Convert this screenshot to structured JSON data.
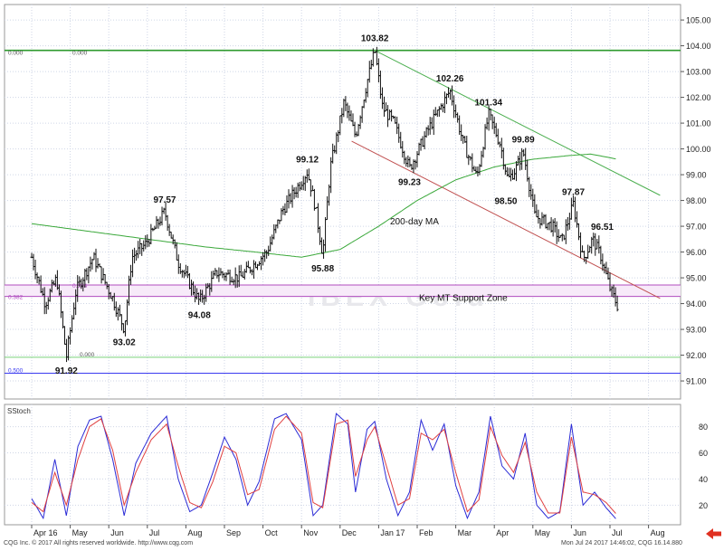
{
  "chart_data": [
    {
      "type": "ohlc",
      "instrument": "",
      "ylim": [
        90.3,
        105.6
      ],
      "y_ticks": [
        "105.00",
        "104.00",
        "103.00",
        "102.00",
        "101.00",
        "100.00",
        "99.00",
        "98.00",
        "97.00",
        "96.00",
        "95.00",
        "94.00",
        "93.00",
        "92.00",
        "91.00"
      ],
      "x_ticks": [
        "Apr 16",
        "May",
        "Jun",
        "Jul",
        "Aug",
        "Sep",
        "Oct",
        "Nov",
        "Dec",
        "Jan 17",
        "Feb",
        "Mar",
        "Apr",
        "May",
        "Jun",
        "Jul",
        "Aug"
      ],
      "price_anchors": [
        {
          "m": 0.0,
          "v": 95.8
        },
        {
          "m": 0.35,
          "v": 94.0
        },
        {
          "m": 0.65,
          "v": 95.0
        },
        {
          "m": 0.9,
          "v": 91.92
        },
        {
          "m": 1.15,
          "v": 94.5
        },
        {
          "m": 1.6,
          "v": 95.8
        },
        {
          "m": 2.1,
          "v": 94.2
        },
        {
          "m": 2.4,
          "v": 93.02
        },
        {
          "m": 2.6,
          "v": 95.8
        },
        {
          "m": 2.95,
          "v": 96.3
        },
        {
          "m": 3.45,
          "v": 97.57
        },
        {
          "m": 3.8,
          "v": 95.6
        },
        {
          "m": 4.35,
          "v": 94.08
        },
        {
          "m": 4.8,
          "v": 95.2
        },
        {
          "m": 5.4,
          "v": 95.0
        },
        {
          "m": 6.1,
          "v": 96.0
        },
        {
          "m": 6.5,
          "v": 97.6
        },
        {
          "m": 7.15,
          "v": 99.12
        },
        {
          "m": 7.35,
          "v": 97.8
        },
        {
          "m": 7.55,
          "v": 95.88
        },
        {
          "m": 7.75,
          "v": 99.3
        },
        {
          "m": 8.1,
          "v": 101.8
        },
        {
          "m": 8.4,
          "v": 100.5
        },
        {
          "m": 8.7,
          "v": 102.6
        },
        {
          "m": 8.9,
          "v": 103.82
        },
        {
          "m": 9.1,
          "v": 101.6
        },
        {
          "m": 9.4,
          "v": 101.0
        },
        {
          "m": 9.8,
          "v": 99.23
        },
        {
          "m": 10.3,
          "v": 100.8
        },
        {
          "m": 10.85,
          "v": 102.26
        },
        {
          "m": 11.2,
          "v": 100.2
        },
        {
          "m": 11.55,
          "v": 98.9
        },
        {
          "m": 11.85,
          "v": 101.34
        },
        {
          "m": 12.15,
          "v": 100.2
        },
        {
          "m": 12.35,
          "v": 98.8
        },
        {
          "m": 12.55,
          "v": 99.2
        },
        {
          "m": 12.75,
          "v": 99.89
        },
        {
          "m": 13.05,
          "v": 97.4
        },
        {
          "m": 13.5,
          "v": 97.0
        },
        {
          "m": 13.75,
          "v": 96.4
        },
        {
          "m": 14.05,
          "v": 97.87
        },
        {
          "m": 14.3,
          "v": 95.7
        },
        {
          "m": 14.55,
          "v": 96.51
        },
        {
          "m": 14.75,
          "v": 95.9
        },
        {
          "m": 15.0,
          "v": 94.6
        },
        {
          "m": 15.2,
          "v": 93.9
        }
      ],
      "ma_anchors": [
        {
          "m": 0.0,
          "v": 97.1
        },
        {
          "m": 1.5,
          "v": 96.8
        },
        {
          "m": 3.0,
          "v": 96.5
        },
        {
          "m": 4.5,
          "v": 96.2
        },
        {
          "m": 5.8,
          "v": 96.0
        },
        {
          "m": 7.0,
          "v": 95.8
        },
        {
          "m": 8.0,
          "v": 96.1
        },
        {
          "m": 9.0,
          "v": 97.0
        },
        {
          "m": 10.0,
          "v": 98.0
        },
        {
          "m": 11.0,
          "v": 98.8
        },
        {
          "m": 12.0,
          "v": 99.3
        },
        {
          "m": 13.0,
          "v": 99.6
        },
        {
          "m": 14.0,
          "v": 99.75
        },
        {
          "m": 14.5,
          "v": 99.8
        },
        {
          "m": 15.2,
          "v": 99.6
        }
      ],
      "ma_label": "200-day MA",
      "downtrend_channel": {
        "upper": {
          "from": {
            "m": 8.9,
            "v": 103.82
          },
          "to": {
            "m": 16.3,
            "v": 98.2
          }
        },
        "lower": {
          "from": {
            "m": 8.3,
            "v": 100.3
          },
          "to": {
            "m": 16.3,
            "v": 94.2
          }
        }
      },
      "fib_lines": [
        {
          "label": "0.000",
          "value": 103.82,
          "color": "#2e9a2e"
        },
        {
          "label": "0.382",
          "value": 94.28,
          "color": "#b04cbf"
        },
        {
          "label": "0.500",
          "value": 91.3,
          "color": "#3a3af0"
        }
      ],
      "extra_fib_labels": [
        {
          "label": "0.000",
          "value": 103.82
        },
        {
          "label": "0.324",
          "value": 94.72
        },
        {
          "label": "0.000",
          "value": 91.92
        }
      ],
      "support_zone": {
        "label": "Key MT Support Zone",
        "top": 94.72,
        "bottom": 94.28
      },
      "green_support": 91.92,
      "annotations": [
        {
          "text": "103.82",
          "m": 8.9,
          "v": 103.82,
          "pos": "above"
        },
        {
          "text": "102.26",
          "m": 10.85,
          "v": 102.26,
          "pos": "above"
        },
        {
          "text": "101.34",
          "m": 11.85,
          "v": 101.34,
          "pos": "above"
        },
        {
          "text": "99.89",
          "m": 12.75,
          "v": 99.89,
          "pos": "above"
        },
        {
          "text": "99.12",
          "m": 7.15,
          "v": 99.12,
          "pos": "above"
        },
        {
          "text": "99.23",
          "m": 9.8,
          "v": 99.23,
          "pos": "below"
        },
        {
          "text": "98.50",
          "m": 12.3,
          "v": 98.5,
          "pos": "below"
        },
        {
          "text": "97.87",
          "m": 14.05,
          "v": 97.87,
          "pos": "above"
        },
        {
          "text": "97.57",
          "m": 3.45,
          "v": 97.57,
          "pos": "above"
        },
        {
          "text": "96.51",
          "m": 14.8,
          "v": 96.51,
          "pos": "above"
        },
        {
          "text": "95.88",
          "m": 7.55,
          "v": 95.88,
          "pos": "below"
        },
        {
          "text": "94.08",
          "m": 4.35,
          "v": 94.08,
          "pos": "below"
        },
        {
          "text": "93.02",
          "m": 2.4,
          "v": 93.02,
          "pos": "below"
        },
        {
          "text": "91.92",
          "m": 0.9,
          "v": 91.92,
          "pos": "below"
        }
      ]
    },
    {
      "type": "line",
      "title": "SStoch",
      "ylim": [
        5,
        97
      ],
      "y_ticks": [
        "80",
        "60",
        "40",
        "20"
      ],
      "series": [
        {
          "color": "#2b2bd6",
          "anchors": [
            {
              "m": 0.0,
              "v": 25
            },
            {
              "m": 0.3,
              "v": 10
            },
            {
              "m": 0.6,
              "v": 55
            },
            {
              "m": 0.9,
              "v": 12
            },
            {
              "m": 1.2,
              "v": 65
            },
            {
              "m": 1.5,
              "v": 85
            },
            {
              "m": 1.8,
              "v": 88
            },
            {
              "m": 2.1,
              "v": 55
            },
            {
              "m": 2.4,
              "v": 12
            },
            {
              "m": 2.7,
              "v": 52
            },
            {
              "m": 3.1,
              "v": 75
            },
            {
              "m": 3.5,
              "v": 88
            },
            {
              "m": 3.8,
              "v": 40
            },
            {
              "m": 4.1,
              "v": 15
            },
            {
              "m": 4.4,
              "v": 20
            },
            {
              "m": 4.7,
              "v": 45
            },
            {
              "m": 5.0,
              "v": 72
            },
            {
              "m": 5.3,
              "v": 55
            },
            {
              "m": 5.6,
              "v": 20
            },
            {
              "m": 5.9,
              "v": 38
            },
            {
              "m": 6.3,
              "v": 86
            },
            {
              "m": 6.6,
              "v": 90
            },
            {
              "m": 7.0,
              "v": 70
            },
            {
              "m": 7.3,
              "v": 12
            },
            {
              "m": 7.55,
              "v": 20
            },
            {
              "m": 7.9,
              "v": 90
            },
            {
              "m": 8.2,
              "v": 82
            },
            {
              "m": 8.4,
              "v": 30
            },
            {
              "m": 8.7,
              "v": 78
            },
            {
              "m": 8.9,
              "v": 84
            },
            {
              "m": 9.2,
              "v": 40
            },
            {
              "m": 9.5,
              "v": 12
            },
            {
              "m": 9.8,
              "v": 30
            },
            {
              "m": 10.1,
              "v": 85
            },
            {
              "m": 10.4,
              "v": 62
            },
            {
              "m": 10.7,
              "v": 82
            },
            {
              "m": 11.0,
              "v": 35
            },
            {
              "m": 11.3,
              "v": 10
            },
            {
              "m": 11.6,
              "v": 30
            },
            {
              "m": 11.9,
              "v": 88
            },
            {
              "m": 12.2,
              "v": 50
            },
            {
              "m": 12.5,
              "v": 40
            },
            {
              "m": 12.8,
              "v": 75
            },
            {
              "m": 13.1,
              "v": 20
            },
            {
              "m": 13.4,
              "v": 10
            },
            {
              "m": 13.7,
              "v": 15
            },
            {
              "m": 14.0,
              "v": 82
            },
            {
              "m": 14.3,
              "v": 20
            },
            {
              "m": 14.6,
              "v": 30
            },
            {
              "m": 14.9,
              "v": 18
            },
            {
              "m": 15.2,
              "v": 8
            }
          ]
        },
        {
          "color": "#e04040",
          "anchors": [
            {
              "m": 0.0,
              "v": 22
            },
            {
              "m": 0.3,
              "v": 15
            },
            {
              "m": 0.6,
              "v": 45
            },
            {
              "m": 0.9,
              "v": 20
            },
            {
              "m": 1.2,
              "v": 55
            },
            {
              "m": 1.5,
              "v": 80
            },
            {
              "m": 1.8,
              "v": 86
            },
            {
              "m": 2.1,
              "v": 62
            },
            {
              "m": 2.4,
              "v": 20
            },
            {
              "m": 2.7,
              "v": 45
            },
            {
              "m": 3.1,
              "v": 70
            },
            {
              "m": 3.5,
              "v": 82
            },
            {
              "m": 3.8,
              "v": 50
            },
            {
              "m": 4.1,
              "v": 22
            },
            {
              "m": 4.4,
              "v": 18
            },
            {
              "m": 4.7,
              "v": 38
            },
            {
              "m": 5.0,
              "v": 65
            },
            {
              "m": 5.3,
              "v": 60
            },
            {
              "m": 5.6,
              "v": 28
            },
            {
              "m": 5.9,
              "v": 32
            },
            {
              "m": 6.3,
              "v": 78
            },
            {
              "m": 6.6,
              "v": 88
            },
            {
              "m": 7.0,
              "v": 75
            },
            {
              "m": 7.3,
              "v": 22
            },
            {
              "m": 7.55,
              "v": 18
            },
            {
              "m": 7.9,
              "v": 82
            },
            {
              "m": 8.2,
              "v": 85
            },
            {
              "m": 8.4,
              "v": 42
            },
            {
              "m": 8.7,
              "v": 70
            },
            {
              "m": 8.9,
              "v": 80
            },
            {
              "m": 9.2,
              "v": 50
            },
            {
              "m": 9.5,
              "v": 20
            },
            {
              "m": 9.8,
              "v": 25
            },
            {
              "m": 10.1,
              "v": 75
            },
            {
              "m": 10.4,
              "v": 70
            },
            {
              "m": 10.7,
              "v": 78
            },
            {
              "m": 11.0,
              "v": 45
            },
            {
              "m": 11.3,
              "v": 15
            },
            {
              "m": 11.6,
              "v": 24
            },
            {
              "m": 11.9,
              "v": 80
            },
            {
              "m": 12.2,
              "v": 58
            },
            {
              "m": 12.5,
              "v": 45
            },
            {
              "m": 12.8,
              "v": 68
            },
            {
              "m": 13.1,
              "v": 30
            },
            {
              "m": 13.4,
              "v": 14
            },
            {
              "m": 13.7,
              "v": 14
            },
            {
              "m": 14.0,
              "v": 72
            },
            {
              "m": 14.3,
              "v": 30
            },
            {
              "m": 14.6,
              "v": 28
            },
            {
              "m": 14.9,
              "v": 22
            },
            {
              "m": 15.2,
              "v": 12
            }
          ]
        }
      ]
    }
  ],
  "footer": {
    "left": "CQG Inc. © 2017 All rights reserved worldwide. http://www.cqg.com",
    "right": "Mon Jul 24 2017 14:46:02, CQG 16.14.880"
  },
  "watermark": "IBEX Gold"
}
